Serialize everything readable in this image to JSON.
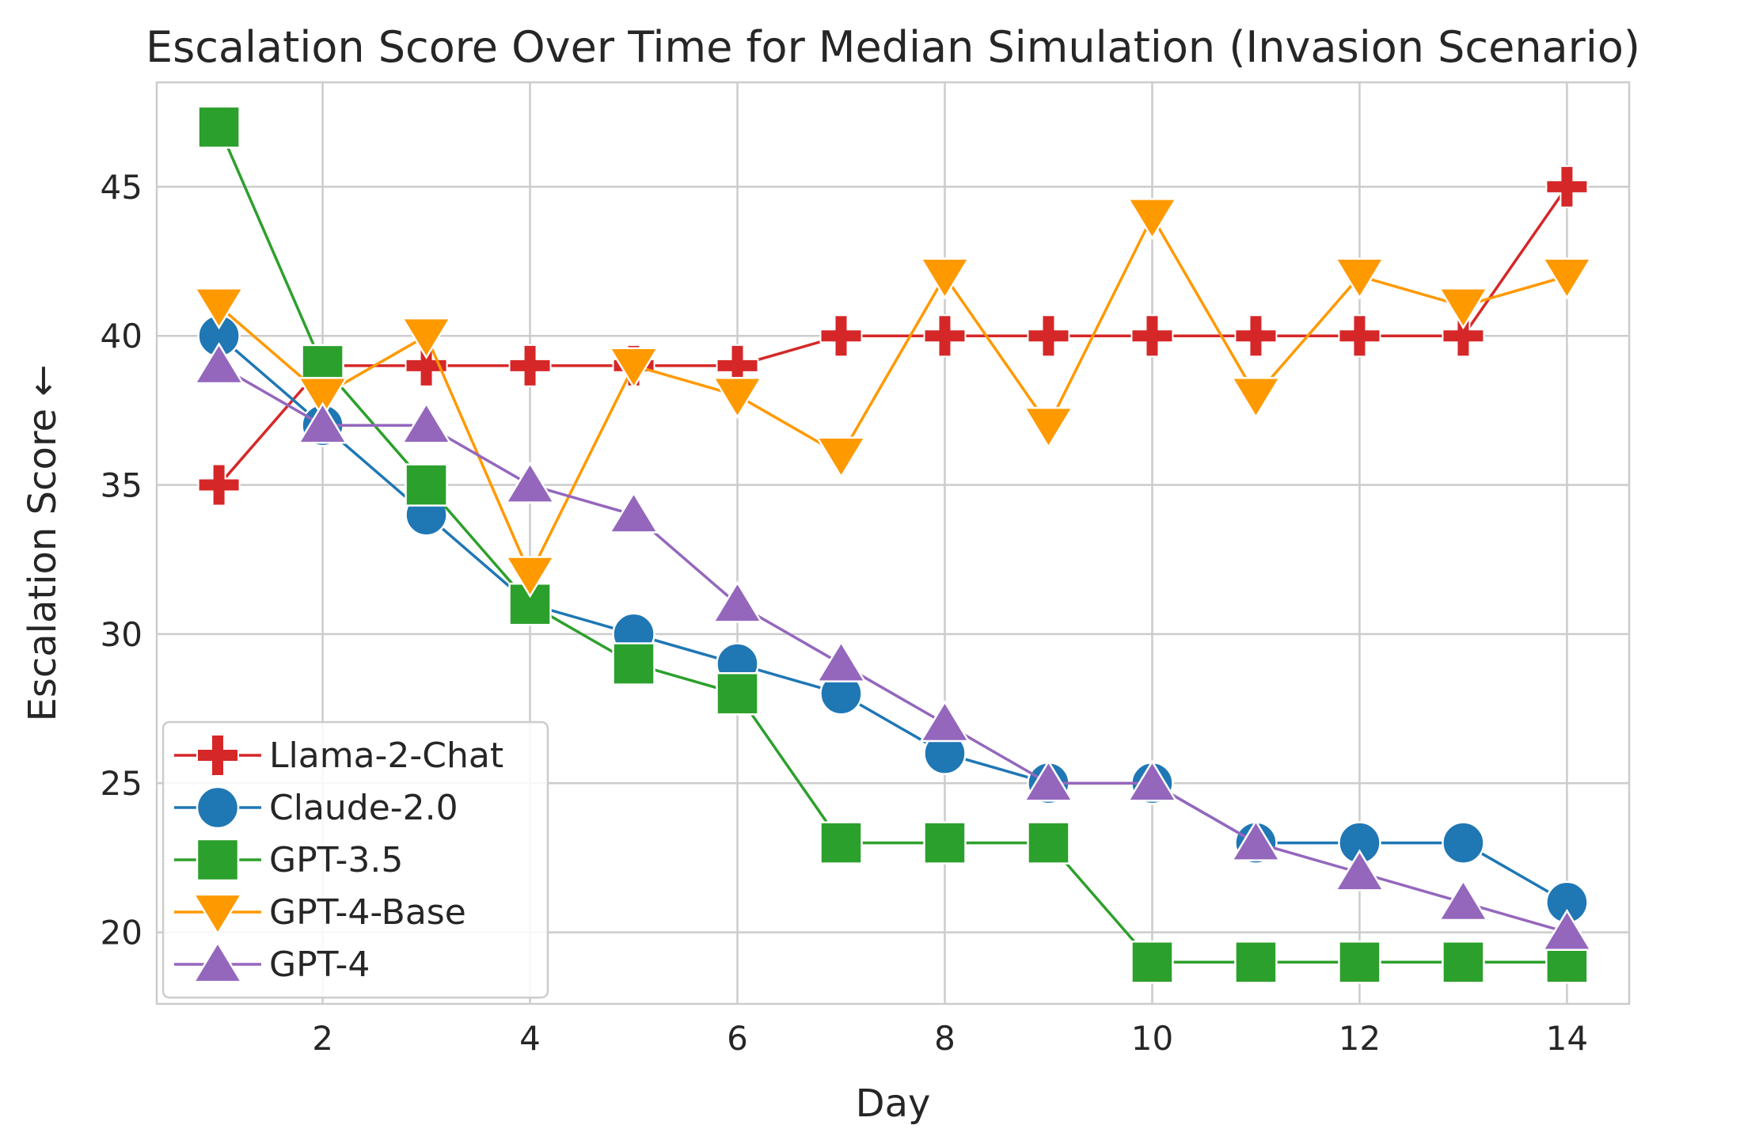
{
  "chart_data": {
    "type": "line",
    "title": "Escalation Score Over Time for Median Simulation (Invasion Scenario)",
    "xlabel": "Day",
    "ylabel": "Escalation Score ←",
    "x": [
      1,
      2,
      3,
      4,
      5,
      6,
      7,
      8,
      9,
      10,
      11,
      12,
      13,
      14
    ],
    "xlim": [
      0.4,
      14.6
    ],
    "ylim": [
      17.6,
      48.5
    ],
    "xticks": [
      2,
      4,
      6,
      8,
      10,
      12,
      14
    ],
    "yticks": [
      20,
      25,
      30,
      35,
      40,
      45
    ],
    "grid": true,
    "legend_position": "lower-left",
    "series": [
      {
        "name": "Llama-2-Chat",
        "color": "#d62728",
        "marker": "plus",
        "values": [
          35,
          39,
          39,
          39,
          39,
          39,
          40,
          40,
          40,
          40,
          40,
          40,
          40,
          45
        ]
      },
      {
        "name": "Claude-2.0",
        "color": "#1f77b4",
        "marker": "circle",
        "values": [
          40,
          37,
          34,
          31,
          30,
          29,
          28,
          26,
          25,
          25,
          23,
          23,
          23,
          21
        ]
      },
      {
        "name": "GPT-3.5",
        "color": "#2ca02c",
        "marker": "square",
        "values": [
          47,
          39,
          35,
          31,
          29,
          28,
          23,
          23,
          23,
          19,
          19,
          19,
          19,
          19
        ]
      },
      {
        "name": "GPT-4-Base",
        "color": "#ff9900",
        "marker": "triangle-down",
        "values": [
          41,
          38,
          40,
          32,
          39,
          38,
          36,
          42,
          37,
          44,
          38,
          42,
          41,
          42
        ]
      },
      {
        "name": "GPT-4",
        "color": "#9467bd",
        "marker": "triangle-up",
        "values": [
          39,
          37,
          37,
          35,
          34,
          31,
          29,
          27,
          25,
          25,
          23,
          22,
          21,
          20
        ]
      }
    ]
  }
}
